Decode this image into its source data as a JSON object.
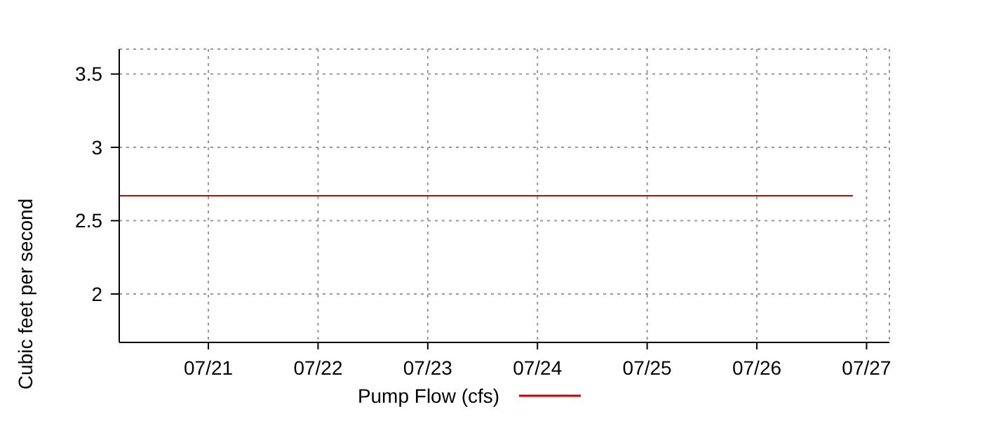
{
  "chart_data": {
    "type": "line",
    "ylabel": "Cubic feet per second",
    "x": [
      "--07-20T04:30",
      "--07-26T21:00"
    ],
    "series": [
      {
        "name": "Pump Flow (cfs)",
        "color": "#cc0000",
        "values": [
          2.67,
          2.67
        ]
      }
    ],
    "xlim": [
      "--07-20T04:30",
      "--07-27T05:00"
    ],
    "xticks": [
      {
        "value": "--07-21",
        "label": "07/21"
      },
      {
        "value": "--07-22",
        "label": "07/22"
      },
      {
        "value": "--07-23",
        "label": "07/23"
      },
      {
        "value": "--07-24",
        "label": "07/24"
      },
      {
        "value": "--07-25",
        "label": "07/25"
      },
      {
        "value": "--07-26",
        "label": "07/26"
      },
      {
        "value": "--07-27",
        "label": "07/27"
      }
    ],
    "ylim": [
      1.67,
      3.67
    ],
    "yticks": [
      2,
      2.5,
      3,
      3.5
    ],
    "grid": true,
    "legend": "bottom",
    "marker": "none",
    "line_style": "solid"
  }
}
